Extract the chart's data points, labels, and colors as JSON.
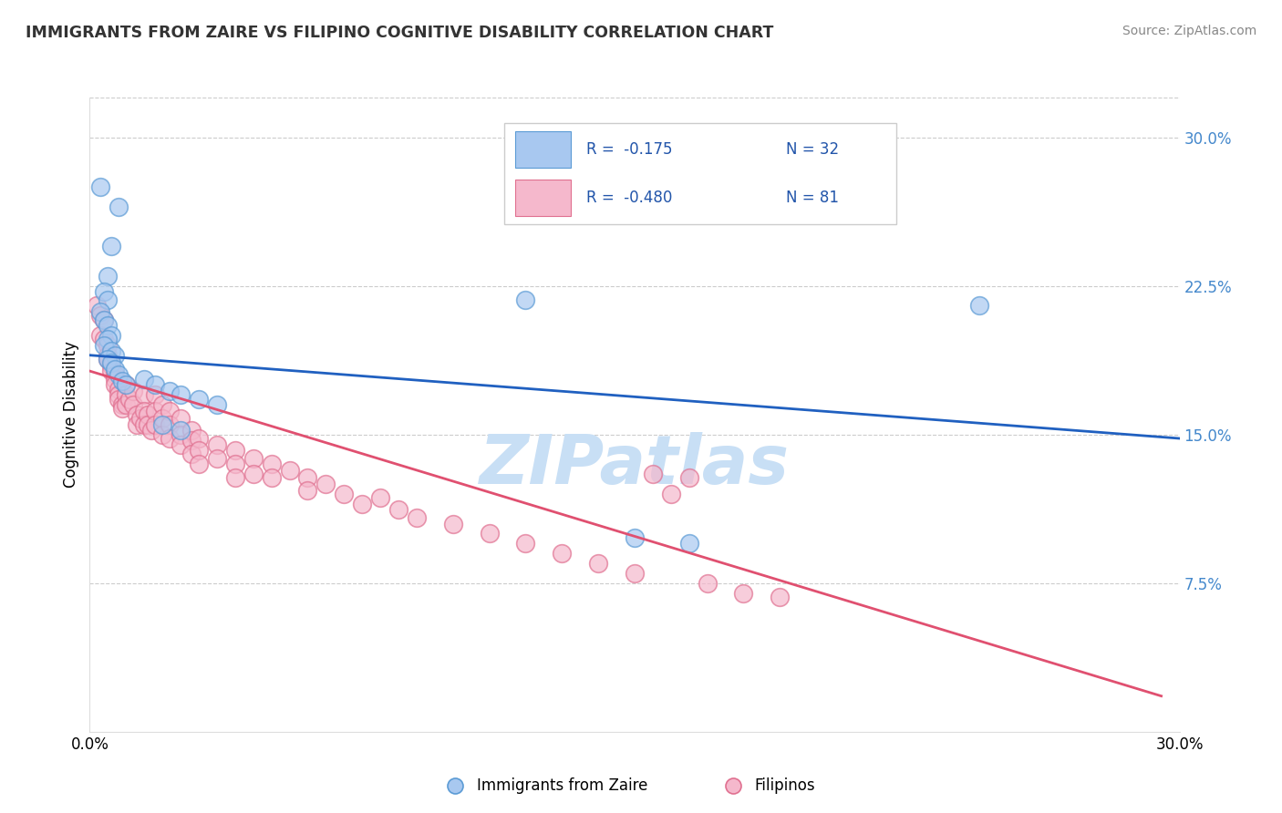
{
  "title": "IMMIGRANTS FROM ZAIRE VS FILIPINO COGNITIVE DISABILITY CORRELATION CHART",
  "source": "Source: ZipAtlas.com",
  "ylabel": "Cognitive Disability",
  "right_yticks": [
    "30.0%",
    "22.5%",
    "15.0%",
    "7.5%"
  ],
  "right_ytick_vals": [
    0.3,
    0.225,
    0.15,
    0.075
  ],
  "xmin": 0.0,
  "xmax": 0.3,
  "ymin": 0.0,
  "ymax": 0.32,
  "legend_r1": "R =  -0.175",
  "legend_n1": "N = 32",
  "legend_r2": "R =  -0.480",
  "legend_n2": "N = 81",
  "zaire_color": "#a8c8f0",
  "filipino_color": "#f5b8cc",
  "zaire_edge": "#5b9bd5",
  "filipino_edge": "#e07090",
  "trend_blue": "#2060c0",
  "trend_pink": "#e05070",
  "watermark": "ZIPatlas",
  "watermark_color": "#c8dff5",
  "zaire_scatter": [
    [
      0.003,
      0.275
    ],
    [
      0.008,
      0.265
    ],
    [
      0.006,
      0.245
    ],
    [
      0.005,
      0.23
    ],
    [
      0.004,
      0.222
    ],
    [
      0.005,
      0.218
    ],
    [
      0.003,
      0.212
    ],
    [
      0.004,
      0.208
    ],
    [
      0.005,
      0.205
    ],
    [
      0.006,
      0.2
    ],
    [
      0.005,
      0.198
    ],
    [
      0.004,
      0.195
    ],
    [
      0.006,
      0.192
    ],
    [
      0.007,
      0.19
    ],
    [
      0.005,
      0.188
    ],
    [
      0.006,
      0.186
    ],
    [
      0.007,
      0.183
    ],
    [
      0.008,
      0.18
    ],
    [
      0.009,
      0.177
    ],
    [
      0.01,
      0.175
    ],
    [
      0.015,
      0.178
    ],
    [
      0.018,
      0.175
    ],
    [
      0.022,
      0.172
    ],
    [
      0.025,
      0.17
    ],
    [
      0.03,
      0.168
    ],
    [
      0.035,
      0.165
    ],
    [
      0.02,
      0.155
    ],
    [
      0.025,
      0.152
    ],
    [
      0.12,
      0.218
    ],
    [
      0.15,
      0.098
    ],
    [
      0.165,
      0.095
    ],
    [
      0.245,
      0.215
    ]
  ],
  "filipino_scatter": [
    [
      0.002,
      0.215
    ],
    [
      0.003,
      0.21
    ],
    [
      0.004,
      0.208
    ],
    [
      0.003,
      0.2
    ],
    [
      0.004,
      0.198
    ],
    [
      0.005,
      0.195
    ],
    [
      0.005,
      0.19
    ],
    [
      0.005,
      0.188
    ],
    [
      0.006,
      0.185
    ],
    [
      0.006,
      0.182
    ],
    [
      0.007,
      0.18
    ],
    [
      0.007,
      0.178
    ],
    [
      0.007,
      0.175
    ],
    [
      0.008,
      0.173
    ],
    [
      0.008,
      0.17
    ],
    [
      0.008,
      0.168
    ],
    [
      0.009,
      0.165
    ],
    [
      0.009,
      0.163
    ],
    [
      0.01,
      0.175
    ],
    [
      0.01,
      0.17
    ],
    [
      0.01,
      0.165
    ],
    [
      0.011,
      0.168
    ],
    [
      0.012,
      0.172
    ],
    [
      0.012,
      0.165
    ],
    [
      0.013,
      0.16
    ],
    [
      0.013,
      0.155
    ],
    [
      0.014,
      0.158
    ],
    [
      0.015,
      0.17
    ],
    [
      0.015,
      0.162
    ],
    [
      0.015,
      0.155
    ],
    [
      0.016,
      0.16
    ],
    [
      0.016,
      0.155
    ],
    [
      0.017,
      0.152
    ],
    [
      0.018,
      0.17
    ],
    [
      0.018,
      0.162
    ],
    [
      0.018,
      0.155
    ],
    [
      0.02,
      0.165
    ],
    [
      0.02,
      0.158
    ],
    [
      0.02,
      0.15
    ],
    [
      0.022,
      0.162
    ],
    [
      0.022,
      0.155
    ],
    [
      0.022,
      0.148
    ],
    [
      0.025,
      0.158
    ],
    [
      0.025,
      0.15
    ],
    [
      0.025,
      0.145
    ],
    [
      0.028,
      0.152
    ],
    [
      0.028,
      0.147
    ],
    [
      0.028,
      0.14
    ],
    [
      0.03,
      0.148
    ],
    [
      0.03,
      0.142
    ],
    [
      0.03,
      0.135
    ],
    [
      0.035,
      0.145
    ],
    [
      0.035,
      0.138
    ],
    [
      0.04,
      0.142
    ],
    [
      0.04,
      0.135
    ],
    [
      0.04,
      0.128
    ],
    [
      0.045,
      0.138
    ],
    [
      0.045,
      0.13
    ],
    [
      0.05,
      0.135
    ],
    [
      0.05,
      0.128
    ],
    [
      0.055,
      0.132
    ],
    [
      0.06,
      0.128
    ],
    [
      0.065,
      0.125
    ],
    [
      0.06,
      0.122
    ],
    [
      0.07,
      0.12
    ],
    [
      0.075,
      0.115
    ],
    [
      0.08,
      0.118
    ],
    [
      0.085,
      0.112
    ],
    [
      0.09,
      0.108
    ],
    [
      0.1,
      0.105
    ],
    [
      0.11,
      0.1
    ],
    [
      0.12,
      0.095
    ],
    [
      0.13,
      0.09
    ],
    [
      0.14,
      0.085
    ],
    [
      0.15,
      0.08
    ],
    [
      0.16,
      0.12
    ],
    [
      0.17,
      0.075
    ],
    [
      0.18,
      0.07
    ],
    [
      0.19,
      0.068
    ],
    [
      0.155,
      0.13
    ],
    [
      0.165,
      0.128
    ]
  ],
  "blue_trend_x": [
    0.0,
    0.3
  ],
  "blue_trend_y": [
    0.19,
    0.148
  ],
  "pink_trend_x": [
    0.0,
    0.295
  ],
  "pink_trend_y": [
    0.182,
    0.018
  ]
}
